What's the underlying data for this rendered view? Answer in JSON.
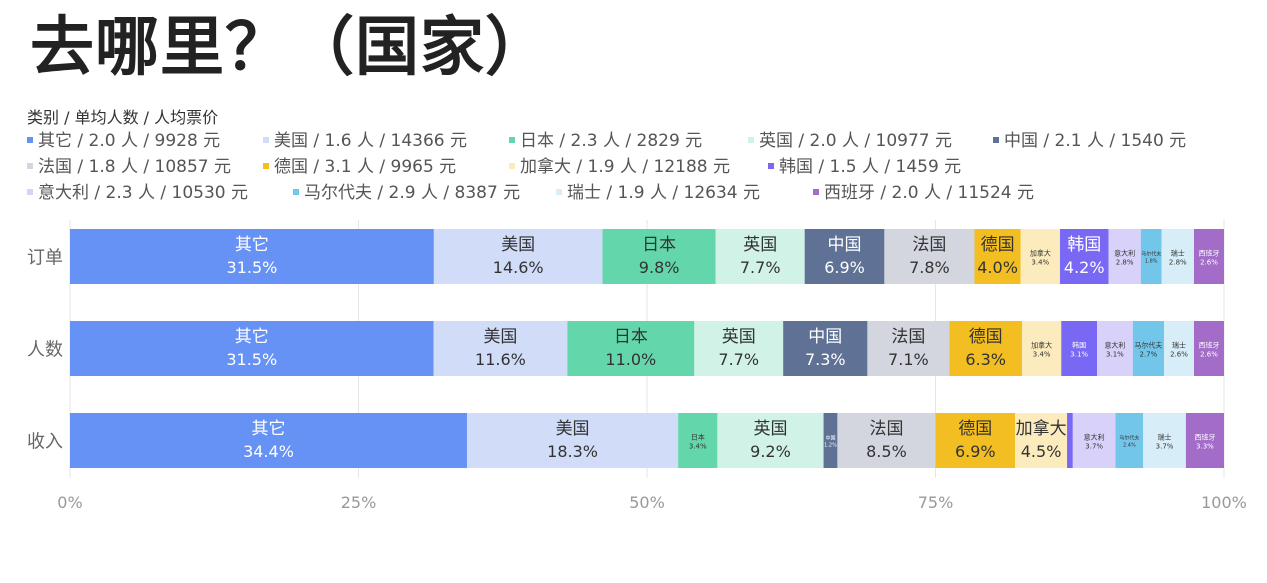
{
  "page_title": "去哪里？（国家）",
  "legend_title": "类别 / 单均人数 / 人均票价",
  "legend_items": [
    {
      "text": "其它 / 2.0 人 / 9928 元",
      "color": "#6691f5"
    },
    {
      "text": "美国 / 1.6 人 / 14366 元",
      "color": "#d1dcf8"
    },
    {
      "text": "日本 / 2.3 人 / 2829 元",
      "color": "#63d7ab"
    },
    {
      "text": "英国 / 2.0 人 / 10977 元",
      "color": "#d1f2e7"
    },
    {
      "text": "中国 / 2.1 人 / 1540 元",
      "color": "#5f7194"
    },
    {
      "text": "法国 / 1.8 人 / 10857 元",
      "color": "#d3d6de"
    },
    {
      "text": "德国 / 3.1 人 / 9965 元",
      "color": "#f2be22"
    },
    {
      "text": "加拿大 / 1.9 人 / 12188 元",
      "color": "#fbebbd"
    },
    {
      "text": "韩国 / 1.5 人 / 1459 元",
      "color": "#7868f3"
    },
    {
      "text": "意大利 / 2.3 人 / 10530 元",
      "color": "#d8d1fa"
    },
    {
      "text": "马尔代夫 / 2.9 人 / 8387 元",
      "color": "#72c6ea"
    },
    {
      "text": "瑞士 / 1.9 人 / 12634 元",
      "color": "#d7eef8"
    },
    {
      "text": "西班牙 / 2.0 人 / 11524 元",
      "color": "#a36cc8"
    }
  ],
  "chart_data": {
    "type": "bar",
    "orientation": "horizontal",
    "stacked": "percent",
    "categories": [
      "订单",
      "人数",
      "收入"
    ],
    "series": [
      {
        "name": "其它",
        "values": [
          31.5,
          31.5,
          34.4
        ],
        "color": "#6691f5"
      },
      {
        "name": "美国",
        "values": [
          14.6,
          11.6,
          18.3
        ],
        "color": "#d1dcf8"
      },
      {
        "name": "日本",
        "values": [
          9.8,
          11.0,
          3.4
        ],
        "color": "#63d7ab"
      },
      {
        "name": "英国",
        "values": [
          7.7,
          7.7,
          9.2
        ],
        "color": "#d1f2e7"
      },
      {
        "name": "中国",
        "values": [
          6.9,
          7.3,
          1.2
        ],
        "color": "#5f7194"
      },
      {
        "name": "法国",
        "values": [
          7.8,
          7.1,
          8.5
        ],
        "color": "#d3d6de"
      },
      {
        "name": "德国",
        "values": [
          4.0,
          6.3,
          6.9
        ],
        "color": "#f2be22"
      },
      {
        "name": "加拿大",
        "values": [
          3.4,
          3.4,
          4.5
        ],
        "color": "#fbebbd"
      },
      {
        "name": "韩国",
        "values": [
          4.2,
          3.1,
          0.5
        ],
        "color": "#7868f3"
      },
      {
        "name": "意大利",
        "values": [
          2.8,
          3.1,
          3.7
        ],
        "color": "#d8d1fa"
      },
      {
        "name": "马尔代夫",
        "values": [
          1.8,
          2.7,
          2.4
        ],
        "color": "#72c6ea"
      },
      {
        "name": "瑞士",
        "values": [
          2.8,
          2.6,
          3.7
        ],
        "color": "#d7eef8"
      },
      {
        "name": "西班牙",
        "values": [
          2.6,
          2.6,
          3.3
        ],
        "color": "#a36cc8"
      }
    ],
    "xlim": [
      0,
      100
    ],
    "x_ticks": [
      "0%",
      "25%",
      "50%",
      "75%",
      "100%"
    ],
    "grid": true,
    "legend_position": "top"
  }
}
